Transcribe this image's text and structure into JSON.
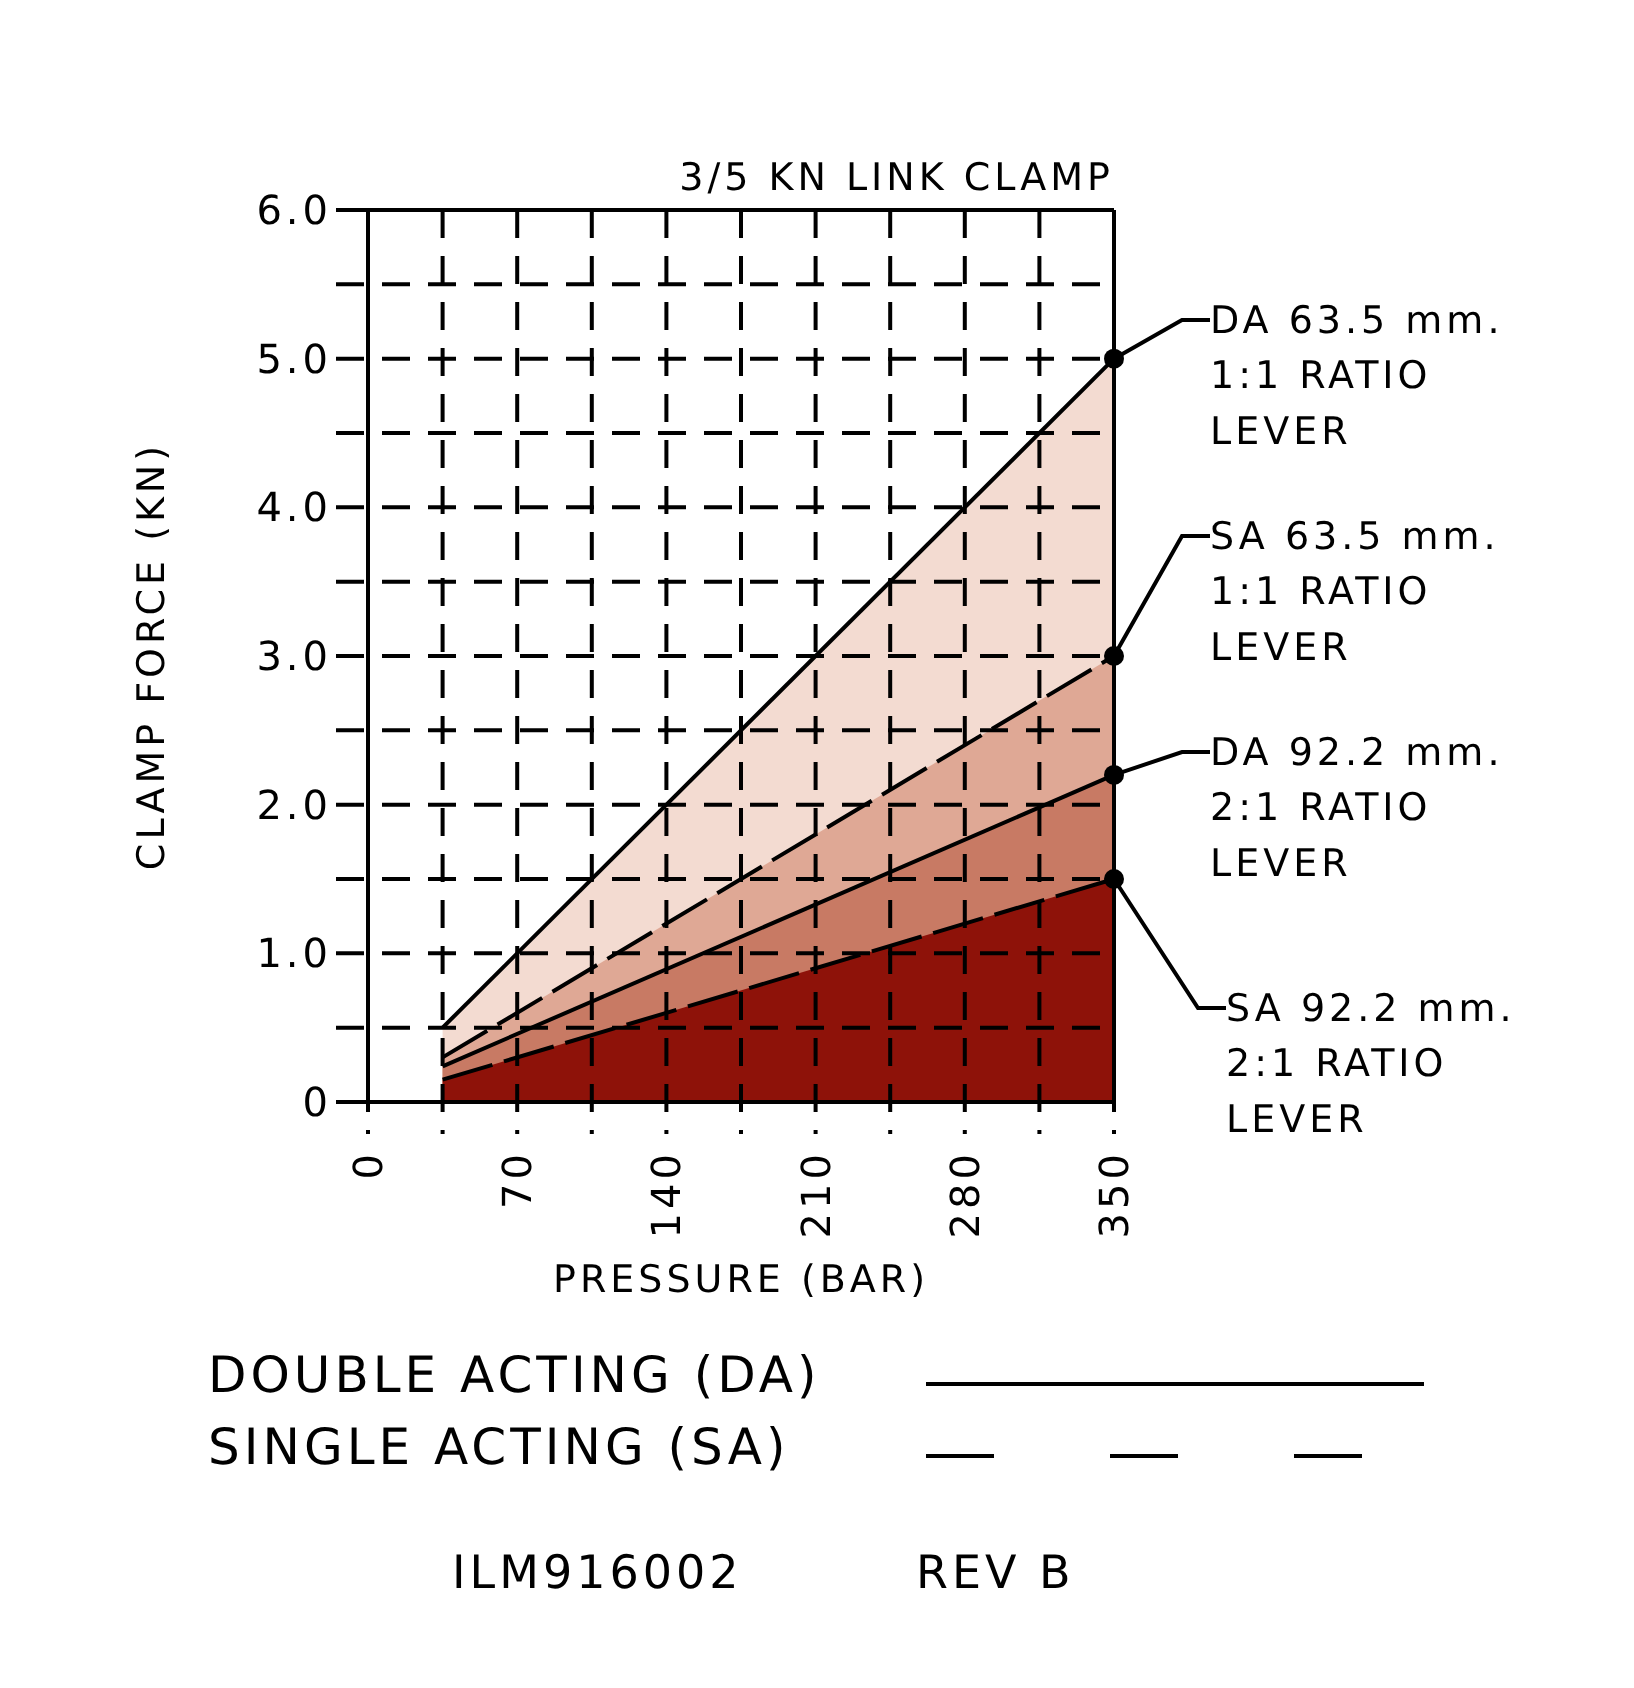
{
  "chart_data": {
    "type": "area",
    "title": "3/5 KN LINK CLAMP",
    "xlabel": "PRESSURE (BAR)",
    "ylabel": "CLAMP FORCE (KN)",
    "xlim": [
      0,
      350
    ],
    "ylim": [
      0,
      6
    ],
    "xticks": [
      0,
      {
        "value": 35,
        "label": null
      },
      70,
      {
        "value": 105,
        "label": null
      },
      140,
      {
        "value": 175,
        "label": null
      },
      210,
      {
        "value": 245,
        "label": null
      },
      280,
      {
        "value": 315,
        "label": null
      },
      350
    ],
    "yticks": [
      {
        "value": 0,
        "label": "0"
      },
      {
        "value": 0.5,
        "label": null
      },
      {
        "value": 1,
        "label": "1.0"
      },
      {
        "value": 1.5,
        "label": null
      },
      {
        "value": 2,
        "label": "2.0"
      },
      {
        "value": 2.5,
        "label": null
      },
      {
        "value": 3,
        "label": "3.0"
      },
      {
        "value": 3.5,
        "label": null
      },
      {
        "value": 4,
        "label": "4.0"
      },
      {
        "value": 4.5,
        "label": null
      },
      {
        "value": 5,
        "label": "5.0"
      },
      {
        "value": 5.5,
        "label": null
      },
      {
        "value": 6,
        "label": "6.0"
      }
    ],
    "grid": true,
    "legend": "right",
    "x": [
      35,
      350
    ],
    "series": [
      {
        "name": "DA 63.5 mm. 1:1 RATIO LEVER",
        "color": "#f3dbd1",
        "line_style": "solid",
        "values": [
          0.5,
          5.0
        ]
      },
      {
        "name": "SA 63.5 mm. 1:1 RATIO LEVER",
        "color": "#dfa895",
        "line_style": "dashed",
        "values": [
          0.3,
          3.0
        ]
      },
      {
        "name": "DA 92.2 mm. 2:1 RATIO LEVER",
        "color": "#c87a64",
        "line_style": "solid",
        "values": [
          0.24,
          2.2
        ]
      },
      {
        "name": "SA 92.2 mm. 2:1 RATIO LEVER",
        "color": "#8e1209",
        "line_style": "dashed",
        "values": [
          0.15,
          1.5
        ]
      }
    ],
    "annotations": [
      "DOUBLE ACTING (DA)",
      "SINGLE ACTING (SA)",
      "ILM916002",
      "REV B"
    ]
  }
}
